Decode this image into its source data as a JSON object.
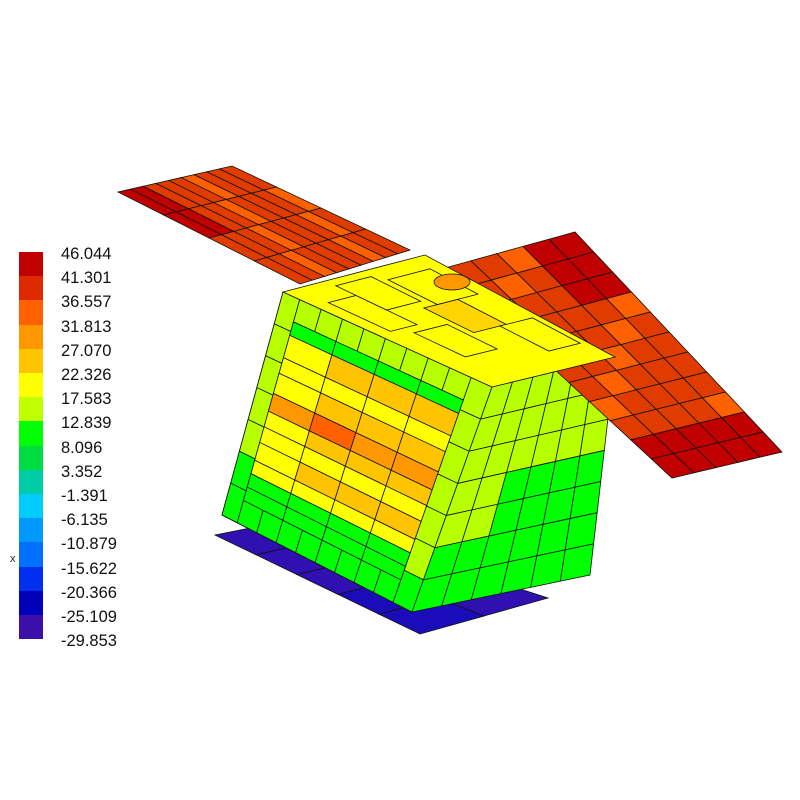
{
  "legend": {
    "values": [
      "46.044",
      "41.301",
      "36.557",
      "31.813",
      "27.070",
      "22.326",
      "17.583",
      "12.839",
      "8.096",
      "3.352",
      "-1.391",
      "-6.135",
      "-10.879",
      "-15.622",
      "-20.366",
      "-25.109",
      "-29.853"
    ],
    "colors": [
      "#c00000",
      "#dd2a00",
      "#ff6000",
      "#ff9800",
      "#ffc400",
      "#ffff00",
      "#c0ff00",
      "#00ff00",
      "#00dd40",
      "#00cca8",
      "#00ccff",
      "#0099ff",
      "#0070ff",
      "#0030ee",
      "#0000b8",
      "#3a10a8"
    ]
  },
  "axis_label": "x",
  "model": {
    "solar_panel_color": "#e03c00",
    "solar_panel_hot_color": "#c00000",
    "solar_panel_warm_color": "#ff6000",
    "body_frame_color": "#b8ff00",
    "top_face_color": "#ffff00",
    "interior_colors": [
      "#ffc400",
      "#ff9800",
      "#ffff00",
      "#00ff00"
    ],
    "side_cool_color": "#00ff00",
    "base_plate_color": "#3010b0"
  }
}
